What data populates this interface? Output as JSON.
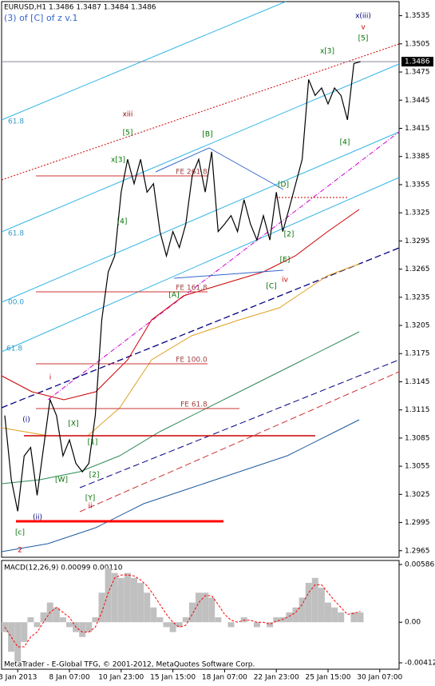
{
  "chart_data": [
    {
      "type": "line",
      "title": "EURUSD,H1  1.3486 1.3487 1.3484 1.3486",
      "subtitle": "(3) of [C] of z v.1",
      "categories": [
        null,
        null,
        "3 Jan 2013",
        null,
        null,
        null,
        null,
        null,
        null,
        null,
        "8 Jan 07:00",
        null,
        null,
        null,
        null,
        null,
        null,
        null,
        "10 Jan 23:00",
        null,
        null,
        null,
        null,
        null,
        null,
        null,
        "15 Jan 15:00",
        null,
        null,
        null,
        null,
        null,
        null,
        null,
        "18 Jan 07:00",
        null,
        null,
        null,
        null,
        null,
        null,
        null,
        "22 Jan 23:00",
        null,
        null,
        null,
        null,
        null,
        null,
        null,
        "25 Jan 15:00",
        null,
        null,
        null,
        null,
        null,
        null,
        null,
        "30 Jan 07:00"
      ],
      "values": [
        1.3109,
        1.3041,
        1.3007,
        1.3066,
        1.3075,
        1.3024,
        1.3075,
        1.3126,
        1.3109,
        1.3066,
        1.3083,
        1.3058,
        1.3049,
        1.3058,
        1.3109,
        1.3211,
        1.3262,
        1.3279,
        1.3347,
        1.3382,
        1.3356,
        1.3382,
        1.3347,
        1.3356,
        1.3305,
        1.3279,
        1.3305,
        1.3288,
        1.3313,
        1.3365,
        1.3382,
        1.3347,
        1.339,
        1.3305,
        1.3313,
        1.3322,
        1.3305,
        1.3339,
        1.3313,
        1.3296,
        1.3322,
        1.3296,
        1.3347,
        1.3305,
        1.333,
        1.3356,
        1.3382,
        1.3467,
        1.345,
        1.3458,
        1.3441,
        1.3458,
        1.345,
        1.3424,
        1.3484,
        1.3486,
        null,
        null,
        null
      ],
      "color": "#000000",
      "last_price": 1.3486,
      "ylim": [
        1.2958,
        1.355
      ],
      "yticks": [
        1.3535,
        1.3505,
        1.3475,
        1.3445,
        1.3415,
        1.3385,
        1.3355,
        1.3325,
        1.3295,
        1.3265,
        1.3235,
        1.3205,
        1.3175,
        1.3145,
        1.3115,
        1.3085,
        1.3055,
        1.3025,
        1.2995,
        1.2965
      ],
      "annotations": [
        "x(iii)",
        "v",
        "[5]",
        "x[3]",
        "xiii",
        "[5]",
        "x[3]",
        "[B]",
        "FE 261.8",
        "[4]",
        "[D]",
        "[2]",
        "[E]",
        "[C]",
        "iv",
        "[4]",
        "FE 161.8",
        "[A]",
        "FE 100.0",
        "FE 61.8",
        "i",
        "(i)",
        "[X]",
        "[1]",
        "[W]",
        "[2]",
        "[Y]",
        "ii",
        "(ii)",
        "[c]",
        "2",
        "61.8",
        "61.8",
        "00.0",
        "61.8"
      ]
    },
    {
      "type": "macd",
      "title": "MACD(12,26,9) 0.00099 0.00110",
      "values": [
        -0.001,
        -0.003,
        -0.004,
        -0.002,
        0.0005,
        -0.0005,
        0.001,
        0.002,
        0.0015,
        0.0005,
        -0.0005,
        -0.001,
        -0.0015,
        -0.001,
        0.0005,
        0.003,
        0.0055,
        0.005,
        0.0045,
        0.005,
        0.0045,
        0.004,
        0.003,
        0.0015,
        0.0005,
        -0.0005,
        -0.001,
        -0.0005,
        0.0005,
        0.002,
        0.003,
        0.003,
        0.0025,
        0.0005,
        0,
        -0.0005,
        0,
        0.0005,
        0,
        -0.0005,
        0,
        -0.0005,
        0.0005,
        0.0005,
        0.001,
        0.0015,
        0.0025,
        0.004,
        0.0045,
        0.0035,
        0.002,
        0.0015,
        0.001,
        0,
        0.001,
        0.00099,
        null,
        null,
        null
      ],
      "signal": [
        -0.0005,
        -0.0015,
        -0.0025,
        -0.0025,
        -0.0015,
        -0.001,
        0,
        0.001,
        0.0015,
        0.001,
        0.0005,
        -0.0005,
        -0.001,
        -0.001,
        -0.0005,
        0.001,
        0.003,
        0.0045,
        0.0048,
        0.0048,
        0.0047,
        0.0043,
        0.0037,
        0.0028,
        0.0018,
        0.0008,
        0,
        -0.0005,
        -0.0003,
        0.0008,
        0.002,
        0.0027,
        0.0027,
        0.0018,
        0.0008,
        0.0002,
        0,
        0.0002,
        0.0002,
        0,
        0,
        -0.0002,
        0.0001,
        0.0003,
        0.0006,
        0.001,
        0.0018,
        0.003,
        0.0038,
        0.0038,
        0.003,
        0.0022,
        0.0015,
        0.0008,
        0.0009,
        0.0011,
        null,
        null,
        null
      ],
      "color": "#c0c0c0",
      "signal_color": "#ff0000",
      "ylim": [
        -0.00477,
        0.00627
      ],
      "yticks": [
        0.00586,
        {
          "value": 0,
          "label": "0.00"
        },
        -0.00412
      ]
    }
  ],
  "footer": "MetaTrader - E-Global TFG, © 2001-2012, MetaQuotes Software Corp."
}
